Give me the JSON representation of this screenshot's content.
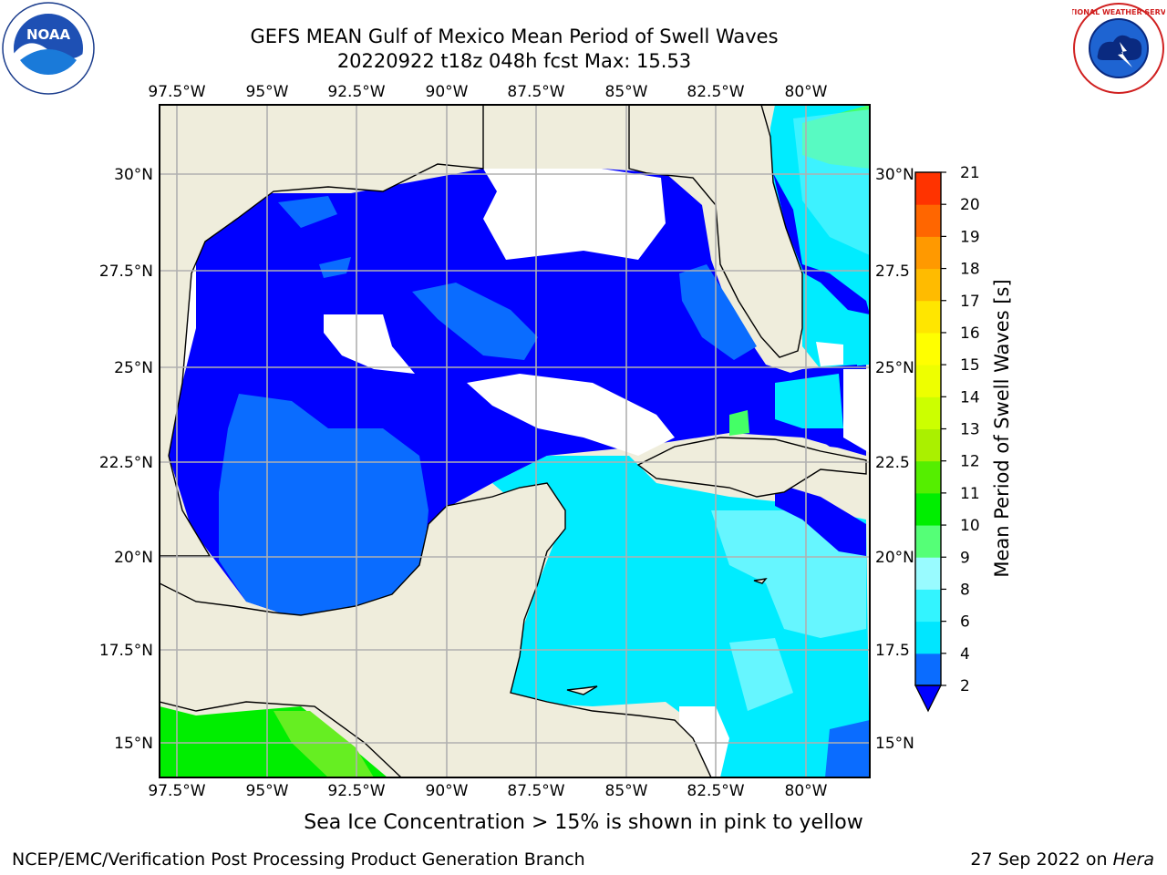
{
  "title_line1": "GEFS MEAN Gulf of Mexico Mean Period of Swell Waves",
  "title_line2": "20220922 t18z 048h fcst   Max: 15.53",
  "lon_labels": [
    "97.5°W",
    "95°W",
    "92.5°W",
    "90°W",
    "87.5°W",
    "85°W",
    "82.5°W",
    "80°W"
  ],
  "lat_labels_left": [
    "30°N",
    "27.5°N",
    "25°N",
    "22.5°N",
    "20°N",
    "17.5°N",
    "15°N"
  ],
  "lat_labels_right": [
    "30°N",
    "27.5",
    "25°N",
    "22.5",
    "20°N",
    "17.5",
    "15°N"
  ],
  "colorbar": {
    "label": "Mean Period of Swell Waves [s]",
    "ticks": [
      "2",
      "4",
      "6",
      "8",
      "9",
      "10",
      "11",
      "12",
      "13",
      "14",
      "15",
      "16",
      "17",
      "18",
      "19",
      "20",
      "21"
    ],
    "colors": [
      "#0a6cff",
      "#00e6ff",
      "#33f4ff",
      "#99fbff",
      "#55ff77",
      "#00ee00",
      "#55ee00",
      "#aaf000",
      "#ccff00",
      "#eeff00",
      "#ffff00",
      "#ffe600",
      "#ffbb00",
      "#ff9900",
      "#ff6600",
      "#ff3300",
      "#ff0000"
    ],
    "extend_color": "#0000ff"
  },
  "map_colors": {
    "land": "#efeddc",
    "deep": "#0000ff",
    "mid": "#0a6cff",
    "cyan": "#00ecff",
    "lightcyan": "#66f6ff",
    "green": "#44ff66",
    "brightgreen": "#00ee00",
    "nodata": "#ffffff"
  },
  "note": "Sea Ice Concentration > 15% is shown in pink to yellow",
  "credit": "NCEP/EMC/Verification Post Processing Product Generation Branch",
  "date_text": "27 Sep 2022 on",
  "date_host": "Hera",
  "logos": {
    "left": "noaa-logo",
    "right": "nws-logo",
    "noaa_text": "NOAA",
    "nws_ring_text": "NATIONAL WEATHER SERVICE"
  }
}
